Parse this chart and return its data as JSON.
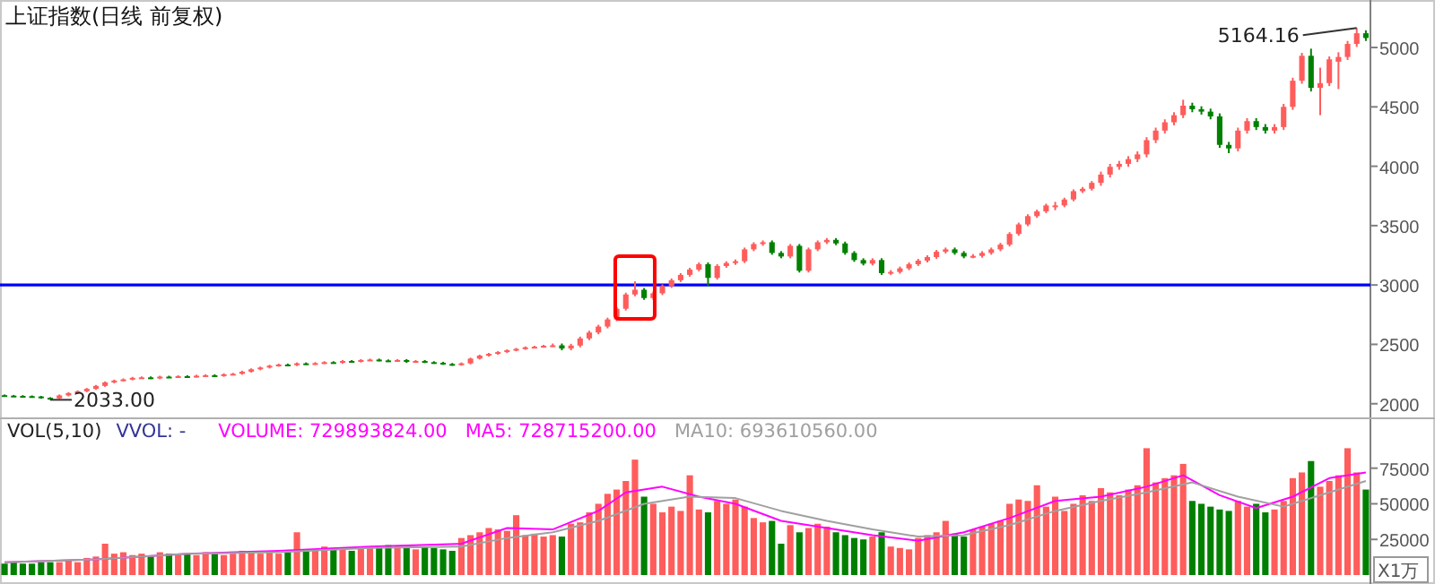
{
  "chart_data": [
    {
      "type": "candlestick",
      "title": "上证指数(日线 前复权)",
      "tick_labels": "y",
      "categories": [
        null,
        null,
        null,
        null,
        null,
        null,
        null,
        null,
        null,
        null,
        null,
        null,
        null,
        null,
        null,
        null,
        null,
        null,
        null,
        null,
        null,
        null,
        null,
        null,
        null,
        null,
        null,
        null,
        null,
        null,
        null,
        null,
        null,
        null,
        null,
        null,
        null,
        null,
        null,
        null,
        null,
        null,
        null,
        null,
        null,
        null,
        null,
        null,
        null,
        null,
        null,
        null,
        null,
        null,
        null,
        null,
        null,
        null,
        null,
        null,
        null,
        null,
        null,
        null,
        null,
        null,
        null,
        null,
        null,
        null,
        null,
        null,
        null,
        null,
        null,
        null,
        null,
        null,
        null,
        null,
        null,
        null,
        null,
        null,
        null,
        null,
        null,
        null,
        null,
        null,
        null,
        null,
        null,
        null,
        null,
        null,
        null,
        null,
        null,
        null,
        null,
        null,
        null,
        null,
        null,
        null,
        null,
        null,
        null,
        null,
        null,
        null,
        null,
        null,
        null,
        null,
        null,
        null,
        null,
        null,
        null,
        null,
        null,
        null,
        null,
        null,
        null,
        null,
        null,
        null,
        null,
        null,
        null,
        null,
        null,
        null,
        null,
        null,
        null,
        null,
        null,
        null,
        null,
        null,
        null,
        null,
        null,
        null,
        null,
        null
      ],
      "ohlc": [
        [
          2072,
          2078,
          2060,
          2068
        ],
        [
          2068,
          2074,
          2058,
          2066
        ],
        [
          2066,
          2072,
          2056,
          2064
        ],
        [
          2064,
          2070,
          2053,
          2061
        ],
        [
          2061,
          2066,
          2042,
          2050
        ],
        [
          2050,
          2055,
          2033,
          2045
        ],
        [
          2045,
          2078,
          2040,
          2070
        ],
        [
          2070,
          2098,
          2062,
          2090
        ],
        [
          2090,
          2113,
          2082,
          2105
        ],
        [
          2105,
          2133,
          2097,
          2125
        ],
        [
          2125,
          2158,
          2117,
          2150
        ],
        [
          2150,
          2188,
          2142,
          2180
        ],
        [
          2180,
          2203,
          2172,
          2195
        ],
        [
          2195,
          2213,
          2187,
          2205
        ],
        [
          2205,
          2226,
          2197,
          2218
        ],
        [
          2218,
          2230,
          2210,
          2222
        ],
        [
          2222,
          2230,
          2207,
          2215
        ],
        [
          2215,
          2236,
          2207,
          2228
        ],
        [
          2228,
          2236,
          2217,
          2225
        ],
        [
          2225,
          2240,
          2217,
          2232
        ],
        [
          2232,
          2240,
          2220,
          2228
        ],
        [
          2228,
          2244,
          2220,
          2236
        ],
        [
          2236,
          2248,
          2228,
          2240
        ],
        [
          2240,
          2248,
          2227,
          2235
        ],
        [
          2235,
          2256,
          2227,
          2248
        ],
        [
          2248,
          2260,
          2240,
          2252
        ],
        [
          2252,
          2278,
          2244,
          2270
        ],
        [
          2270,
          2298,
          2262,
          2290
        ],
        [
          2290,
          2313,
          2282,
          2305
        ],
        [
          2305,
          2328,
          2297,
          2320
        ],
        [
          2320,
          2338,
          2312,
          2330
        ],
        [
          2330,
          2338,
          2317,
          2325
        ],
        [
          2325,
          2348,
          2317,
          2340
        ],
        [
          2340,
          2348,
          2327,
          2335
        ],
        [
          2335,
          2350,
          2327,
          2342
        ],
        [
          2342,
          2358,
          2334,
          2350
        ],
        [
          2350,
          2358,
          2337,
          2345
        ],
        [
          2345,
          2368,
          2337,
          2360
        ],
        [
          2360,
          2368,
          2347,
          2355
        ],
        [
          2355,
          2376,
          2347,
          2368
        ],
        [
          2368,
          2380,
          2360,
          2372
        ],
        [
          2372,
          2380,
          2357,
          2365
        ],
        [
          2365,
          2373,
          2352,
          2360
        ],
        [
          2360,
          2376,
          2352,
          2368
        ],
        [
          2368,
          2376,
          2344,
          2352
        ],
        [
          2352,
          2368,
          2344,
          2360
        ],
        [
          2360,
          2368,
          2342,
          2350
        ],
        [
          2350,
          2358,
          2337,
          2345
        ],
        [
          2345,
          2353,
          2327,
          2335
        ],
        [
          2335,
          2343,
          2320,
          2328
        ],
        [
          2328,
          2348,
          2320,
          2340
        ],
        [
          2340,
          2388,
          2332,
          2380
        ],
        [
          2380,
          2413,
          2372,
          2405
        ],
        [
          2405,
          2428,
          2397,
          2420
        ],
        [
          2420,
          2443,
          2412,
          2435
        ],
        [
          2435,
          2458,
          2427,
          2450
        ],
        [
          2450,
          2470,
          2442,
          2462
        ],
        [
          2462,
          2483,
          2454,
          2475
        ],
        [
          2475,
          2488,
          2467,
          2480
        ],
        [
          2480,
          2496,
          2472,
          2488
        ],
        [
          2488,
          2507,
          2477,
          2492
        ],
        [
          2492,
          2507,
          2450,
          2465
        ],
        [
          2465,
          2505,
          2450,
          2490
        ],
        [
          2490,
          2565,
          2475,
          2550
        ],
        [
          2550,
          2615,
          2535,
          2600
        ],
        [
          2600,
          2665,
          2585,
          2650
        ],
        [
          2650,
          2725,
          2635,
          2710
        ],
        [
          2710,
          2815,
          2695,
          2800
        ],
        [
          2800,
          2935,
          2785,
          2920
        ],
        [
          2920,
          3030,
          2905,
          2960
        ],
        [
          2960,
          2975,
          2875,
          2890
        ],
        [
          2890,
          2945,
          2875,
          2930
        ],
        [
          2930,
          3005,
          2915,
          2990
        ],
        [
          2990,
          3055,
          2975,
          3040
        ],
        [
          3040,
          3100,
          3025,
          3085
        ],
        [
          3085,
          3145,
          3070,
          3130
        ],
        [
          3130,
          3190,
          3115,
          3175
        ],
        [
          3175,
          3190,
          2990,
          3060
        ],
        [
          3060,
          3175,
          3045,
          3160
        ],
        [
          3160,
          3200,
          3145,
          3185
        ],
        [
          3185,
          3215,
          3170,
          3200
        ],
        [
          3200,
          3315,
          3185,
          3300
        ],
        [
          3300,
          3360,
          3285,
          3345
        ],
        [
          3345,
          3375,
          3330,
          3360
        ],
        [
          3360,
          3375,
          3255,
          3270
        ],
        [
          3270,
          3285,
          3225,
          3240
        ],
        [
          3240,
          3345,
          3225,
          3330
        ],
        [
          3330,
          3345,
          3105,
          3120
        ],
        [
          3120,
          3315,
          3105,
          3300
        ],
        [
          3300,
          3375,
          3285,
          3360
        ],
        [
          3360,
          3395,
          3345,
          3380
        ],
        [
          3380,
          3395,
          3335,
          3350
        ],
        [
          3350,
          3365,
          3255,
          3270
        ],
        [
          3270,
          3285,
          3195,
          3210
        ],
        [
          3210,
          3225,
          3165,
          3180
        ],
        [
          3180,
          3225,
          3165,
          3210
        ],
        [
          3210,
          3225,
          3085,
          3100
        ],
        [
          3100,
          3125,
          3085,
          3110
        ],
        [
          3110,
          3155,
          3095,
          3140
        ],
        [
          3140,
          3190,
          3125,
          3175
        ],
        [
          3175,
          3220,
          3160,
          3205
        ],
        [
          3205,
          3250,
          3190,
          3235
        ],
        [
          3235,
          3295,
          3220,
          3280
        ],
        [
          3280,
          3315,
          3265,
          3300
        ],
        [
          3300,
          3315,
          3255,
          3270
        ],
        [
          3270,
          3285,
          3225,
          3240
        ],
        [
          3240,
          3260,
          3225,
          3245
        ],
        [
          3245,
          3285,
          3230,
          3270
        ],
        [
          3270,
          3315,
          3255,
          3300
        ],
        [
          3300,
          3355,
          3285,
          3340
        ],
        [
          3340,
          3445,
          3325,
          3430
        ],
        [
          3430,
          3525,
          3415,
          3510
        ],
        [
          3510,
          3595,
          3495,
          3580
        ],
        [
          3580,
          3635,
          3565,
          3620
        ],
        [
          3620,
          3685,
          3605,
          3670
        ],
        [
          3660,
          3700,
          3630,
          3670
        ],
        [
          3670,
          3735,
          3655,
          3720
        ],
        [
          3720,
          3805,
          3705,
          3790
        ],
        [
          3790,
          3825,
          3775,
          3810
        ],
        [
          3810,
          3875,
          3795,
          3860
        ],
        [
          3860,
          3955,
          3835,
          3930
        ],
        [
          3930,
          4020,
          3905,
          3995
        ],
        [
          3995,
          4045,
          3970,
          4020
        ],
        [
          4020,
          4085,
          3995,
          4060
        ],
        [
          4060,
          4125,
          4035,
          4100
        ],
        [
          4100,
          4245,
          4075,
          4220
        ],
        [
          4220,
          4325,
          4195,
          4300
        ],
        [
          4300,
          4395,
          4275,
          4370
        ],
        [
          4370,
          4455,
          4345,
          4430
        ],
        [
          4430,
          4560,
          4405,
          4510
        ],
        [
          4510,
          4535,
          4455,
          4480
        ],
        [
          4480,
          4505,
          4435,
          4460
        ],
        [
          4460,
          4485,
          4395,
          4420
        ],
        [
          4420,
          4445,
          4155,
          4180
        ],
        [
          4180,
          4205,
          4110,
          4150
        ],
        [
          4150,
          4325,
          4125,
          4300
        ],
        [
          4300,
          4405,
          4275,
          4380
        ],
        [
          4380,
          4405,
          4305,
          4330
        ],
        [
          4330,
          4355,
          4275,
          4300
        ],
        [
          4300,
          4355,
          4275,
          4330
        ],
        [
          4330,
          4525,
          4305,
          4500
        ],
        [
          4500,
          4745,
          4475,
          4720
        ],
        [
          4720,
          4955,
          4695,
          4930
        ],
        [
          4930,
          4990,
          4630,
          4660
        ],
        [
          4660,
          4830,
          4430,
          4700
        ],
        [
          4700,
          4925,
          4675,
          4900
        ],
        [
          4880,
          4960,
          4650,
          4920
        ],
        [
          4920,
          5055,
          4895,
          5030
        ],
        [
          5030,
          5164.16,
          5005,
          5120
        ],
        [
          5120,
          5145,
          5055,
          5080
        ]
      ],
      "ylim": [
        1900,
        5400
      ],
      "yticks": [
        2000,
        2500,
        3000,
        3500,
        4000,
        4500,
        5000
      ],
      "ref_lines": [
        {
          "axis": "y",
          "value": 3000,
          "color": "#0000ff"
        }
      ],
      "annotations": [
        "2033.00",
        "5164.16"
      ]
    },
    {
      "type": "bar",
      "title": "VOL(5,10)",
      "tick_labels": "y",
      "categories": [
        null,
        null,
        null,
        null,
        null,
        null,
        null,
        null,
        null,
        null,
        null,
        null,
        null,
        null,
        null,
        null,
        null,
        null,
        null,
        null,
        null,
        null,
        null,
        null,
        null,
        null,
        null,
        null,
        null,
        null,
        null,
        null,
        null,
        null,
        null,
        null,
        null,
        null,
        null,
        null,
        null,
        null,
        null,
        null,
        null,
        null,
        null,
        null,
        null,
        null,
        null,
        null,
        null,
        null,
        null,
        null,
        null,
        null,
        null,
        null,
        null,
        null,
        null,
        null,
        null,
        null,
        null,
        null,
        null,
        null,
        null,
        null,
        null,
        null,
        null,
        null,
        null,
        null,
        null,
        null,
        null,
        null,
        null,
        null,
        null,
        null,
        null,
        null,
        null,
        null,
        null,
        null,
        null,
        null,
        null,
        null,
        null,
        null,
        null,
        null,
        null,
        null,
        null,
        null,
        null,
        null,
        null,
        null,
        null,
        null,
        null,
        null,
        null,
        null,
        null,
        null,
        null,
        null,
        null,
        null,
        null,
        null,
        null,
        null,
        null,
        null,
        null,
        null,
        null,
        null,
        null,
        null,
        null,
        null,
        null,
        null,
        null,
        null,
        null,
        null,
        null,
        null,
        null,
        null,
        null,
        null,
        null,
        null,
        null,
        null
      ],
      "series": [
        {
          "colors": [
            "#008000",
            "#008000",
            "#008000",
            "#008000",
            "#008000",
            "#008000",
            "#ff5c5c",
            "#ff5c5c",
            "#ff5c5c",
            "#ff5c5c",
            "#ff5c5c",
            "#ff5c5c",
            "#ff5c5c",
            "#ff5c5c",
            "#ff5c5c",
            "#ff5c5c",
            "#008000",
            "#ff5c5c",
            "#008000",
            "#ff5c5c",
            "#008000",
            "#ff5c5c",
            "#ff5c5c",
            "#008000",
            "#ff5c5c",
            "#ff5c5c",
            "#ff5c5c",
            "#ff5c5c",
            "#ff5c5c",
            "#ff5c5c",
            "#ff5c5c",
            "#008000",
            "#ff5c5c",
            "#008000",
            "#ff5c5c",
            "#ff5c5c",
            "#008000",
            "#ff5c5c",
            "#008000",
            "#ff5c5c",
            "#ff5c5c",
            "#008000",
            "#008000",
            "#ff5c5c",
            "#008000",
            "#ff5c5c",
            "#008000",
            "#008000",
            "#008000",
            "#008000",
            "#ff5c5c",
            "#ff5c5c",
            "#ff5c5c",
            "#ff5c5c",
            "#ff5c5c",
            "#ff5c5c",
            "#ff5c5c",
            "#ff5c5c",
            "#ff5c5c",
            "#ff5c5c",
            "#ff5c5c",
            "#008000",
            "#ff5c5c",
            "#ff5c5c",
            "#ff5c5c",
            "#ff5c5c",
            "#ff5c5c",
            "#ff5c5c",
            "#ff5c5c",
            "#ff5c5c",
            "#008000",
            "#ff5c5c",
            "#ff5c5c",
            "#ff5c5c",
            "#ff5c5c",
            "#ff5c5c",
            "#ff5c5c",
            "#008000",
            "#ff5c5c",
            "#ff5c5c",
            "#ff5c5c",
            "#ff5c5c",
            "#ff5c5c",
            "#ff5c5c",
            "#008000",
            "#008000",
            "#ff5c5c",
            "#008000",
            "#ff5c5c",
            "#ff5c5c",
            "#ff5c5c",
            "#008000",
            "#008000",
            "#008000",
            "#008000",
            "#ff5c5c",
            "#008000",
            "#ff5c5c",
            "#ff5c5c",
            "#ff5c5c",
            "#ff5c5c",
            "#ff5c5c",
            "#ff5c5c",
            "#ff5c5c",
            "#008000",
            "#008000",
            "#ff5c5c",
            "#ff5c5c",
            "#ff5c5c",
            "#ff5c5c",
            "#ff5c5c",
            "#ff5c5c",
            "#ff5c5c",
            "#ff5c5c",
            "#ff5c5c",
            "#ff5c5c",
            "#ff5c5c",
            "#ff5c5c",
            "#ff5c5c",
            "#ff5c5c",
            "#ff5c5c",
            "#ff5c5c",
            "#ff5c5c",
            "#ff5c5c",
            "#ff5c5c",
            "#ff5c5c",
            "#ff5c5c",
            "#ff5c5c",
            "#ff5c5c",
            "#ff5c5c",
            "#008000",
            "#008000",
            "#008000",
            "#008000",
            "#008000",
            "#ff5c5c",
            "#ff5c5c",
            "#008000",
            "#008000",
            "#ff5c5c",
            "#ff5c5c",
            "#ff5c5c",
            "#ff5c5c",
            "#008000",
            "#ff5c5c",
            "#ff5c5c",
            "#ff5c5c",
            "#ff5c5c",
            "#ff5c5c",
            "#008000"
          ],
          "values": [
            8000,
            9000,
            8000,
            8000,
            9000,
            9000,
            9000,
            10000,
            9000,
            12000,
            13000,
            22000,
            15000,
            16000,
            14000,
            15000,
            13000,
            16000,
            15000,
            14000,
            15000,
            14000,
            16000,
            15000,
            14000,
            15000,
            17000,
            16000,
            15000,
            16000,
            15000,
            16000,
            30000,
            18000,
            17000,
            20000,
            19000,
            18000,
            17000,
            19000,
            20000,
            19000,
            21000,
            20000,
            19000,
            18000,
            20000,
            19000,
            18000,
            17000,
            26000,
            28000,
            30000,
            33000,
            32000,
            31000,
            42000,
            28000,
            29000,
            27000,
            28000,
            27000,
            36000,
            37000,
            44000,
            50000,
            57000,
            60000,
            66000,
            81000,
            55000,
            50000,
            44000,
            48000,
            45000,
            70000,
            46000,
            44000,
            52000,
            50000,
            53000,
            48000,
            40000,
            37000,
            38000,
            22000,
            35000,
            30000,
            33000,
            36000,
            34000,
            30000,
            28000,
            26000,
            25000,
            27000,
            30000,
            20000,
            19000,
            18000,
            26000,
            28000,
            30000,
            38000,
            29000,
            27000,
            32000,
            34000,
            36000,
            38000,
            50000,
            53000,
            52000,
            63000,
            48000,
            55000,
            45000,
            50000,
            56000,
            52000,
            61000,
            58000,
            56000,
            60000,
            63000,
            89000,
            65000,
            68000,
            70000,
            78000,
            52000,
            50000,
            48000,
            46000,
            45000,
            52000,
            48000,
            50000,
            44000,
            46000,
            52000,
            68000,
            72000,
            80000,
            62000,
            66000,
            70000,
            89000,
            72000,
            60000
          ]
        },
        {
          "type": "line",
          "name": "MA5: 728715200.00",
          "color": "#ff00ff",
          "values": [
            9000,
            null,
            null,
            null,
            null,
            null,
            null,
            null,
            null,
            null,
            11000,
            null,
            null,
            null,
            null,
            null,
            null,
            null,
            null,
            null,
            15000,
            null,
            null,
            null,
            null,
            null,
            null,
            null,
            null,
            null,
            17000,
            null,
            null,
            null,
            null,
            null,
            null,
            null,
            null,
            null,
            20000,
            null,
            null,
            null,
            null,
            null,
            null,
            null,
            null,
            null,
            22000,
            null,
            null,
            null,
            null,
            33000,
            null,
            null,
            null,
            null,
            32000,
            null,
            null,
            null,
            null,
            45000,
            null,
            null,
            58000,
            null,
            null,
            null,
            62000,
            null,
            null,
            null,
            55000,
            null,
            null,
            null,
            50000,
            null,
            null,
            null,
            null,
            38000,
            null,
            null,
            null,
            null,
            33000,
            null,
            null,
            null,
            null,
            28000,
            null,
            null,
            null,
            null,
            24000,
            null,
            null,
            null,
            null,
            30000,
            null,
            null,
            null,
            null,
            40000,
            null,
            null,
            null,
            null,
            52000,
            null,
            null,
            null,
            null,
            55000,
            null,
            null,
            null,
            null,
            62000,
            null,
            null,
            null,
            70000,
            null,
            null,
            null,
            56000,
            null,
            null,
            null,
            47000,
            null,
            null,
            null,
            55000,
            null,
            null,
            null,
            68000,
            null,
            null,
            null,
            72000
          ]
        },
        {
          "type": "line",
          "name": "MA10: 693610560.00",
          "color": "#a0a0a0",
          "values": [
            9000,
            null,
            null,
            null,
            null,
            null,
            null,
            null,
            null,
            null,
            11000,
            null,
            null,
            null,
            null,
            null,
            null,
            null,
            null,
            null,
            15000,
            null,
            null,
            null,
            null,
            null,
            null,
            null,
            null,
            null,
            16000,
            null,
            null,
            null,
            null,
            null,
            null,
            null,
            null,
            null,
            19000,
            null,
            null,
            null,
            null,
            null,
            null,
            null,
            null,
            null,
            20000,
            null,
            null,
            null,
            null,
            26000,
            null,
            null,
            null,
            null,
            30000,
            null,
            null,
            null,
            null,
            38000,
            null,
            null,
            null,
            null,
            50000,
            null,
            null,
            null,
            null,
            55000,
            null,
            null,
            null,
            null,
            54000,
            null,
            null,
            null,
            null,
            45000,
            null,
            null,
            null,
            null,
            38000,
            null,
            null,
            null,
            null,
            32000,
            null,
            null,
            null,
            null,
            27000,
            null,
            null,
            null,
            null,
            28000,
            null,
            null,
            null,
            null,
            35000,
            null,
            null,
            null,
            null,
            45000,
            null,
            null,
            null,
            null,
            52000,
            null,
            null,
            null,
            null,
            58000,
            null,
            null,
            null,
            null,
            65000,
            null,
            null,
            null,
            null,
            55000,
            null,
            null,
            null,
            null,
            48000,
            null,
            null,
            null,
            null,
            58000,
            null,
            null,
            null,
            66000
          ]
        }
      ],
      "ylim": [
        0,
        110000
      ],
      "yticks": [
        25000,
        50000,
        75000
      ],
      "annotations": [
        "VVOL: -",
        "VOLUME: 729893824.00",
        "X1万"
      ]
    }
  ]
}
